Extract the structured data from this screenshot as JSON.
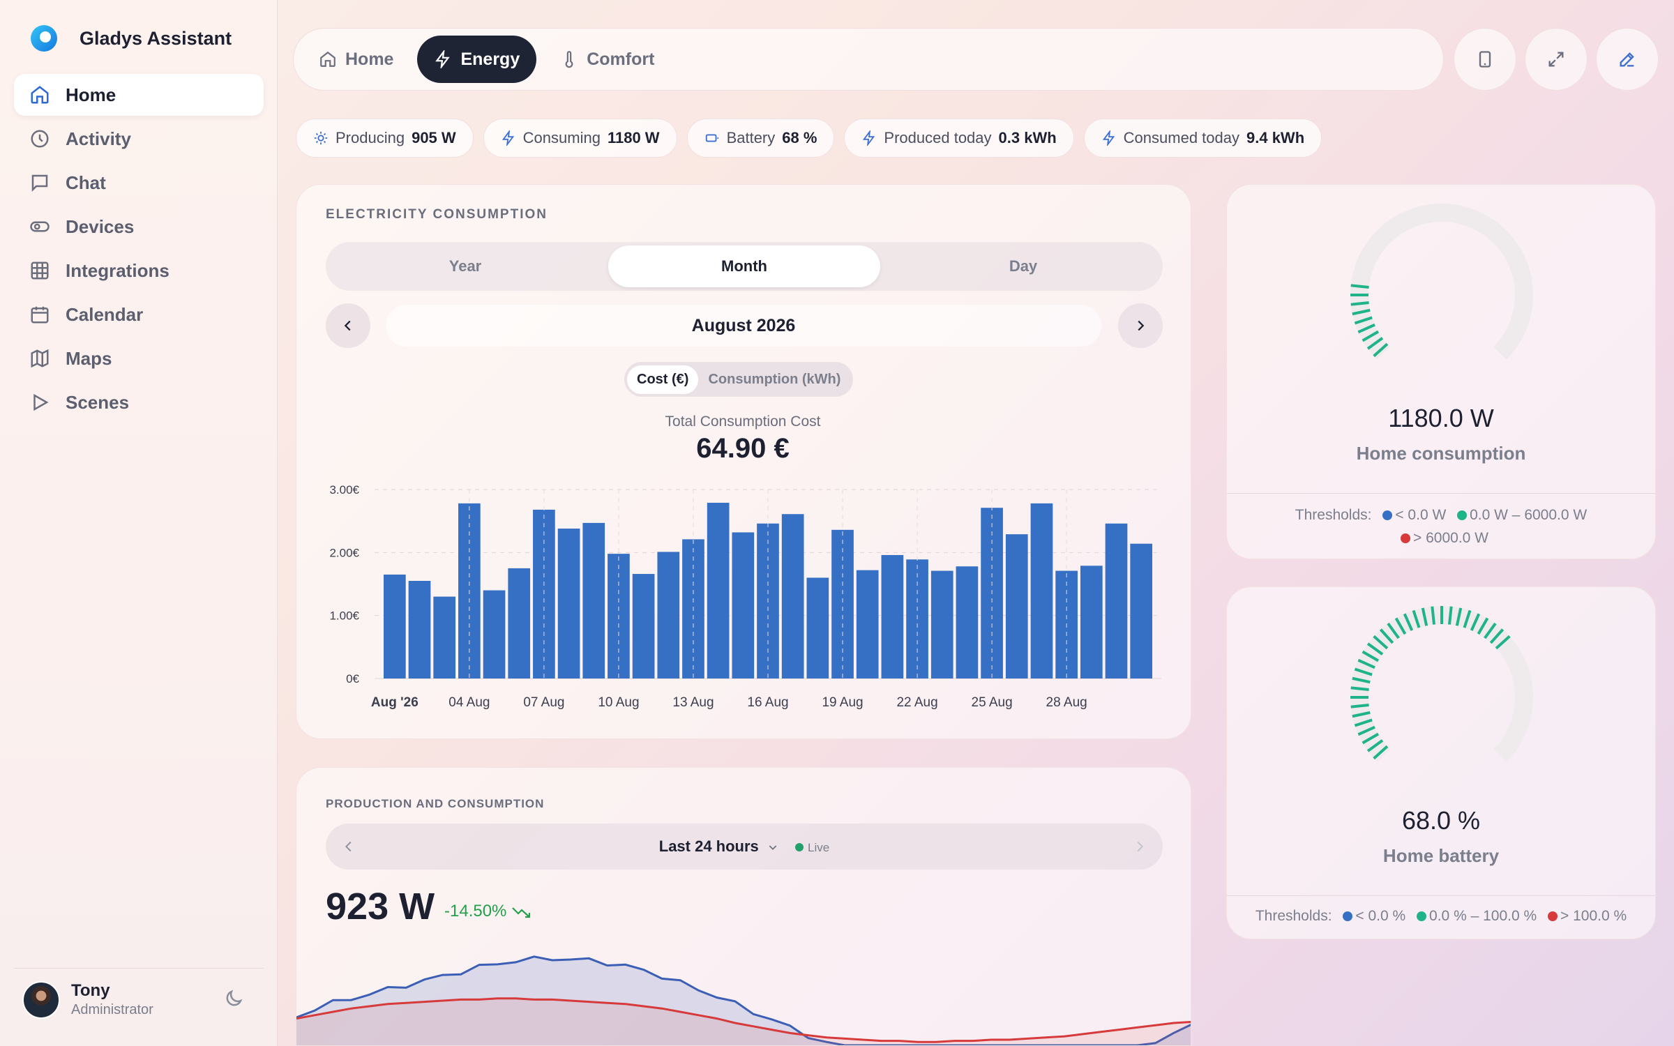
{
  "app": {
    "title": "Gladys Assistant"
  },
  "sidebar": {
    "items": [
      {
        "label": "Home",
        "icon": "home-icon",
        "active": true
      },
      {
        "label": "Activity",
        "icon": "clock-icon"
      },
      {
        "label": "Chat",
        "icon": "chat-icon"
      },
      {
        "label": "Devices",
        "icon": "toggle-icon"
      },
      {
        "label": "Integrations",
        "icon": "grid-icon"
      },
      {
        "label": "Calendar",
        "icon": "calendar-icon"
      },
      {
        "label": "Maps",
        "icon": "map-icon"
      },
      {
        "label": "Scenes",
        "icon": "play-icon"
      }
    ],
    "user": {
      "name": "Tony",
      "role": "Administrator"
    }
  },
  "topbar": {
    "tabs": [
      {
        "label": "Home",
        "icon": "home-icon"
      },
      {
        "label": "Energy",
        "icon": "bolt-icon",
        "active": true
      },
      {
        "label": "Comfort",
        "icon": "thermometer-icon"
      }
    ],
    "buttons": [
      "tablet-icon",
      "expand-icon",
      "edit-icon"
    ]
  },
  "stats": [
    {
      "label": "Producing",
      "value": "905 W",
      "icon": "sun-icon"
    },
    {
      "label": "Consuming",
      "value": "1180 W",
      "icon": "bolt-icon"
    },
    {
      "label": "Battery",
      "value": "68 %",
      "icon": "battery-icon"
    },
    {
      "label": "Produced today",
      "value": "0.3 kWh",
      "icon": "bolt-icon"
    },
    {
      "label": "Consumed today",
      "value": "9.4 kWh",
      "icon": "bolt-icon"
    }
  ],
  "consumption": {
    "title": "ELECTRICITY CONSUMPTION",
    "periods": [
      "Year",
      "Month",
      "Day"
    ],
    "active_period": "Month",
    "month": "August 2026",
    "toggle": [
      "Cost (€)",
      "Consumption (kWh)"
    ],
    "total_label": "Total Consumption Cost",
    "total_value": "64.90 €"
  },
  "home_consumption": {
    "value": "1180.0 W",
    "label": "Home consumption",
    "thresholds_label": "Thresholds:",
    "t1": "< 0.0 W",
    "t2": "0.0 W – 6000.0 W",
    "t3": "> 6000.0 W",
    "fraction": 0.197
  },
  "home_battery": {
    "value": "68.0 %",
    "label": "Home battery",
    "thresholds_label": "Thresholds:",
    "t1": "< 0.0 %",
    "t2": "0.0 % – 100.0 %",
    "t3": "> 100.0 %",
    "fraction": 0.68
  },
  "production": {
    "title": "PRODUCTION AND CONSUMPTION",
    "period": "Last 24 hours",
    "live": "Live",
    "power": "923 W",
    "trend": "-14.50%"
  },
  "colors": {
    "accent": "#2d6ad6",
    "bar": "#3570c4",
    "gauge_ok": "#1fb38a",
    "low": "#3570c4",
    "high": "#d63a3a",
    "prod_line": "#3a5fb5",
    "cons_line": "#d63a3a"
  },
  "chart_data": [
    {
      "type": "bar",
      "title": "Total Consumption Cost",
      "xlabel": "",
      "ylabel": "",
      "ylim": [
        0,
        3
      ],
      "yticks": [
        "0€",
        "1.00€",
        "2.00€",
        "3.00€"
      ],
      "xtick_labels": [
        "Aug '26",
        "04 Aug",
        "07 Aug",
        "10 Aug",
        "13 Aug",
        "16 Aug",
        "19 Aug",
        "22 Aug",
        "25 Aug",
        "28 Aug"
      ],
      "categories": [
        "01",
        "02",
        "03",
        "04",
        "05",
        "06",
        "07",
        "08",
        "09",
        "10",
        "11",
        "12",
        "13",
        "14",
        "15",
        "16",
        "17",
        "18",
        "19",
        "20",
        "21",
        "22",
        "23",
        "24",
        "25",
        "26",
        "27",
        "28",
        "29",
        "30",
        "31"
      ],
      "values": [
        1.65,
        1.55,
        1.3,
        2.78,
        1.4,
        1.75,
        2.68,
        2.38,
        2.47,
        1.98,
        1.66,
        2.01,
        2.21,
        2.79,
        2.32,
        2.46,
        2.61,
        1.6,
        2.36,
        1.72,
        1.96,
        1.89,
        1.71,
        1.78,
        2.71,
        2.29,
        2.78,
        1.71,
        1.79,
        2.46,
        2.14
      ]
    },
    {
      "type": "area",
      "series": [
        {
          "values": [
            0.25,
            0.33,
            0.38,
            0.42,
            0.46,
            0.5,
            0.54,
            0.58,
            0.62,
            0.66,
            0.7,
            0.73,
            0.76,
            0.77,
            0.78,
            0.77,
            0.76,
            0.74,
            0.71,
            0.67,
            0.62,
            0.56,
            0.5,
            0.44,
            0.37,
            0.3,
            0.23,
            0.16,
            0.09,
            0.03,
            0.0,
            0.0,
            0.0,
            0.0,
            0.0,
            0.0,
            0.0,
            0.0,
            0.0,
            0.0,
            0.0,
            0.0,
            0.0,
            0.0,
            0.0,
            0.0,
            0.0,
            0.02,
            0.1,
            0.18
          ]
        },
        {
          "values": [
            0.24,
            0.27,
            0.3,
            0.33,
            0.35,
            0.37,
            0.38,
            0.39,
            0.4,
            0.41,
            0.41,
            0.42,
            0.42,
            0.41,
            0.41,
            0.4,
            0.39,
            0.38,
            0.37,
            0.35,
            0.33,
            0.3,
            0.27,
            0.24,
            0.2,
            0.17,
            0.14,
            0.11,
            0.09,
            0.07,
            0.06,
            0.05,
            0.04,
            0.04,
            0.03,
            0.03,
            0.04,
            0.04,
            0.05,
            0.05,
            0.06,
            0.07,
            0.08,
            0.1,
            0.12,
            0.14,
            0.16,
            0.18,
            0.2,
            0.21
          ]
        }
      ]
    }
  ]
}
